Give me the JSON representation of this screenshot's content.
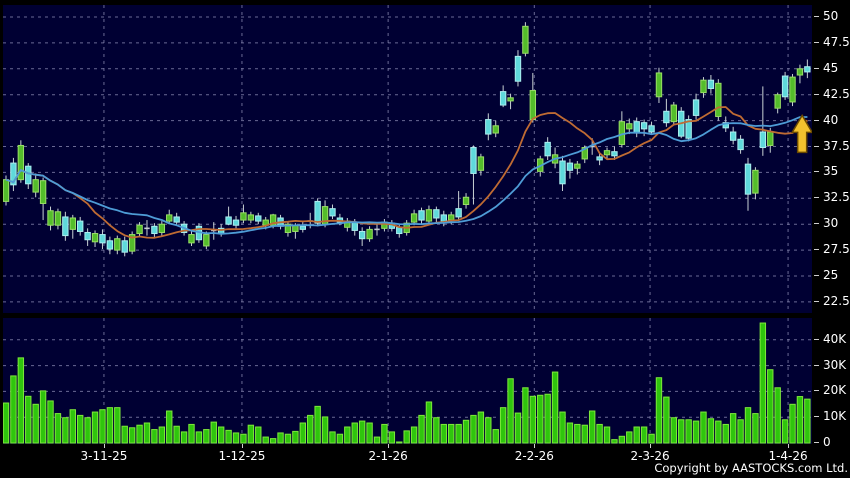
{
  "window": {
    "copyright": "Copyright by AASTOCKS.com Ltd."
  },
  "colors": {
    "background": "#000000",
    "pane": "#000033",
    "grid": "#8585ad",
    "text": "#ffffff",
    "up": "#54bd2b",
    "up_edge": "#9ade66",
    "down": "#5fd9db",
    "down_edge": "#aceeef",
    "doji": "#c4cad2",
    "wick": "#c9d2d4",
    "volume": "#2fc50d",
    "volume_edge": "#7ee83b",
    "ma_fast": "#bf6b33",
    "ma_slow": "#4e9cd6",
    "arrow": "#f2c12e",
    "arrow_edge": "#6b4a00"
  },
  "chart_data": {
    "type": "candlestick",
    "panes": [
      "price",
      "volume"
    ],
    "legend_position": "none",
    "grid": "dashed",
    "price_axis": {
      "side": "right",
      "ticks": [
        50,
        47.5,
        45,
        42.5,
        40,
        37.5,
        35,
        32.5,
        30,
        27.5,
        25,
        22.5
      ],
      "range": [
        21.4,
        50.7
      ]
    },
    "volume_axis": {
      "side": "right",
      "ticks": [
        "40K",
        "30K",
        "20K",
        "10K",
        "0"
      ],
      "values_k": [
        40,
        30,
        20,
        10,
        0
      ],
      "range_k": [
        0,
        48
      ]
    },
    "x_axis": {
      "labels": [
        {
          "text": "3-11-25",
          "index": 13.2
        },
        {
          "text": "1-12-25",
          "index": 31.8
        },
        {
          "text": "2-1-26",
          "index": 51.5
        },
        {
          "text": "2-2-26",
          "index": 71.2
        },
        {
          "text": "2-3-26",
          "index": 86.8
        },
        {
          "text": "1-4-26",
          "index": 105.4
        }
      ]
    },
    "overlays": [
      {
        "name": "MA10",
        "type": "sma",
        "period": 10,
        "color_key": "ma_fast"
      },
      {
        "name": "MA20",
        "type": "sma",
        "period": 20,
        "color_key": "ma_slow"
      }
    ],
    "annotation": {
      "type": "up-arrow",
      "index": 107.3,
      "price": 40.5,
      "color_key": "arrow"
    },
    "candles_ohlc": [
      [
        32.2,
        34.7,
        31.8,
        34.3
      ],
      [
        35.9,
        36.4,
        33.2,
        33.8
      ],
      [
        34.3,
        38.1,
        34.0,
        37.6
      ],
      [
        35.6,
        35.9,
        33.4,
        33.9
      ],
      [
        33.1,
        34.9,
        32.6,
        34.3
      ],
      [
        32.0,
        34.5,
        30.4,
        34.2
      ],
      [
        29.9,
        31.7,
        29.4,
        31.3
      ],
      [
        29.9,
        31.5,
        29.5,
        31.2
      ],
      [
        30.7,
        31.2,
        28.4,
        28.9
      ],
      [
        29.5,
        30.9,
        28.6,
        30.6
      ],
      [
        30.3,
        30.7,
        28.9,
        29.3
      ],
      [
        29.2,
        29.6,
        27.9,
        28.5
      ],
      [
        28.3,
        29.4,
        27.8,
        29.1
      ],
      [
        29.0,
        29.5,
        27.6,
        28.2
      ],
      [
        28.4,
        28.8,
        27.1,
        27.6
      ],
      [
        27.5,
        28.9,
        27.1,
        28.6
      ],
      [
        28.4,
        28.8,
        26.9,
        27.3
      ],
      [
        27.4,
        29.3,
        27.1,
        29.0
      ],
      [
        29.1,
        30.2,
        28.8,
        29.9
      ],
      [
        29.6,
        30.4,
        28.9,
        29.6
      ],
      [
        29.8,
        30.1,
        28.7,
        29.1
      ],
      [
        29.2,
        30.3,
        28.9,
        30.0
      ],
      [
        30.3,
        31.4,
        30.0,
        30.9
      ],
      [
        30.7,
        31.1,
        29.9,
        30.2
      ],
      [
        30.0,
        30.3,
        28.9,
        29.2
      ],
      [
        28.2,
        29.3,
        27.9,
        29.0
      ],
      [
        29.8,
        30.1,
        28.2,
        28.5
      ],
      [
        27.9,
        29.3,
        27.6,
        29.0
      ],
      [
        29.4,
        30.2,
        28.5,
        29.4
      ],
      [
        29.6,
        30.0,
        28.8,
        29.1
      ],
      [
        30.7,
        31.7,
        29.9,
        30.0
      ],
      [
        30.4,
        30.8,
        29.6,
        29.9
      ],
      [
        30.4,
        31.9,
        30.1,
        31.1
      ],
      [
        30.4,
        31.2,
        30.1,
        30.9
      ],
      [
        30.8,
        31.1,
        30.0,
        30.3
      ],
      [
        29.9,
        30.7,
        29.5,
        30.4
      ],
      [
        29.9,
        31.0,
        29.6,
        30.9
      ],
      [
        30.6,
        30.9,
        29.5,
        29.8
      ],
      [
        29.2,
        30.2,
        28.8,
        30.0
      ],
      [
        29.3,
        30.1,
        28.6,
        29.9
      ],
      [
        29.8,
        30.2,
        29.2,
        29.5
      ],
      [
        30.3,
        31.1,
        29.6,
        30.3
      ],
      [
        32.2,
        32.5,
        29.8,
        30.1
      ],
      [
        30.0,
        32.3,
        29.7,
        31.7
      ],
      [
        31.5,
        31.9,
        30.5,
        30.8
      ],
      [
        30.6,
        31.0,
        29.9,
        30.2
      ],
      [
        29.7,
        30.6,
        29.3,
        30.3
      ],
      [
        30.2,
        30.5,
        28.9,
        29.4
      ],
      [
        29.3,
        29.7,
        27.9,
        28.6
      ],
      [
        28.6,
        29.8,
        28.3,
        29.5
      ],
      [
        29.5,
        30.1,
        28.9,
        29.5
      ],
      [
        29.6,
        30.5,
        29.3,
        30.2
      ],
      [
        30.1,
        30.4,
        29.3,
        29.6
      ],
      [
        29.7,
        30.0,
        28.7,
        29.1
      ],
      [
        29.2,
        30.4,
        28.9,
        30.1
      ],
      [
        30.2,
        31.4,
        29.9,
        31.0
      ],
      [
        31.3,
        31.6,
        30.0,
        30.4
      ],
      [
        30.3,
        31.8,
        30.0,
        31.4
      ],
      [
        31.4,
        31.7,
        30.2,
        30.6
      ],
      [
        30.9,
        31.3,
        29.8,
        30.2
      ],
      [
        30.4,
        31.2,
        30.0,
        30.9
      ],
      [
        31.5,
        33.2,
        30.3,
        30.7
      ],
      [
        31.9,
        33.0,
        31.5,
        32.6
      ],
      [
        37.4,
        37.6,
        31.9,
        34.9
      ],
      [
        35.2,
        36.8,
        34.7,
        36.5
      ],
      [
        40.1,
        40.7,
        38.1,
        38.7
      ],
      [
        38.8,
        40.0,
        38.4,
        39.5
      ],
      [
        42.8,
        43.4,
        41.3,
        41.5
      ],
      [
        41.9,
        42.6,
        41.1,
        42.2
      ],
      [
        46.2,
        46.8,
        43.3,
        43.8
      ],
      [
        46.5,
        49.5,
        46.2,
        49.1
      ],
      [
        40.1,
        44.6,
        39.8,
        42.9
      ],
      [
        35.1,
        36.6,
        34.6,
        36.3
      ],
      [
        37.9,
        38.4,
        36.2,
        36.6
      ],
      [
        35.9,
        37.4,
        35.4,
        36.7
      ],
      [
        36.1,
        36.6,
        33.2,
        33.9
      ],
      [
        35.9,
        36.3,
        34.4,
        35.2
      ],
      [
        35.4,
        36.1,
        34.8,
        35.8
      ],
      [
        36.3,
        37.6,
        35.9,
        37.4
      ],
      [
        37.5,
        38.3,
        36.7,
        37.5
      ],
      [
        36.5,
        36.8,
        35.7,
        36.2
      ],
      [
        36.7,
        37.4,
        36.3,
        37.1
      ],
      [
        37.0,
        37.5,
        36.2,
        36.6
      ],
      [
        37.7,
        40.9,
        37.4,
        39.9
      ],
      [
        39.2,
        40.2,
        38.7,
        39.7
      ],
      [
        39.9,
        40.3,
        38.4,
        38.8
      ],
      [
        39.8,
        40.1,
        38.5,
        39.2
      ],
      [
        39.5,
        39.9,
        38.7,
        38.9
      ],
      [
        42.3,
        45.1,
        41.7,
        44.6
      ],
      [
        40.9,
        42.1,
        39.4,
        39.8
      ],
      [
        39.9,
        41.8,
        39.6,
        41.5
      ],
      [
        40.9,
        41.3,
        38.3,
        38.5
      ],
      [
        40.1,
        40.5,
        38.0,
        38.3
      ],
      [
        42.0,
        42.6,
        40.1,
        40.5
      ],
      [
        42.7,
        44.2,
        42.2,
        43.9
      ],
      [
        43.9,
        44.4,
        42.6,
        43.1
      ],
      [
        40.4,
        44.0,
        40.0,
        43.6
      ],
      [
        39.8,
        40.4,
        38.9,
        39.3
      ],
      [
        38.9,
        39.4,
        37.7,
        38.1
      ],
      [
        38.2,
        38.6,
        36.8,
        37.2
      ],
      [
        35.8,
        36.4,
        31.3,
        32.9
      ],
      [
        33.0,
        35.5,
        32.4,
        35.2
      ],
      [
        38.9,
        43.3,
        36.6,
        37.4
      ],
      [
        37.6,
        39.3,
        36.9,
        38.9
      ],
      [
        41.2,
        42.7,
        40.7,
        42.5
      ],
      [
        44.3,
        44.7,
        42.0,
        42.3
      ],
      [
        41.8,
        44.5,
        41.4,
        44.2
      ],
      [
        44.4,
        45.4,
        43.6,
        45.0
      ],
      [
        45.2,
        45.9,
        44.1,
        44.7
      ]
    ],
    "volumes_k": [
      15.5,
      26,
      33,
      18.1,
      15,
      20.2,
      16.3,
      11.4,
      9.8,
      12.9,
      10.7,
      9.8,
      12,
      12.9,
      13.7,
      13.7,
      6.5,
      5.9,
      6.9,
      7.75,
      5.2,
      6.2,
      12.4,
      6.5,
      4.3,
      7.2,
      4.3,
      5.2,
      8.1,
      6.2,
      4.9,
      3.9,
      3.4,
      6.9,
      6.2,
      2.3,
      1.7,
      3.9,
      3.4,
      4.5,
      7.75,
      10.7,
      14.2,
      10.1,
      4.3,
      3.4,
      6.2,
      7.75,
      8.5,
      7.75,
      2.3,
      7.2,
      4.3,
      0.4,
      4.7,
      6.2,
      10.7,
      15.9,
      9.8,
      7.2,
      7.2,
      7.2,
      8.8,
      10.7,
      12,
      9.8,
      5.2,
      13.7,
      24.9,
      11.6,
      21.4,
      18.1,
      18.5,
      18.9,
      27.5,
      12,
      7.75,
      7.2,
      6.9,
      12.4,
      7.2,
      6.2,
      1.3,
      2.6,
      4.3,
      6.2,
      6.2,
      3.4,
      25.3,
      17.8,
      9.8,
      9,
      9,
      8.5,
      12,
      9.4,
      8.5,
      7.2,
      11.4,
      9,
      13.7,
      11.4,
      46.5,
      28.4,
      21.4,
      9,
      15,
      18,
      17
    ]
  }
}
